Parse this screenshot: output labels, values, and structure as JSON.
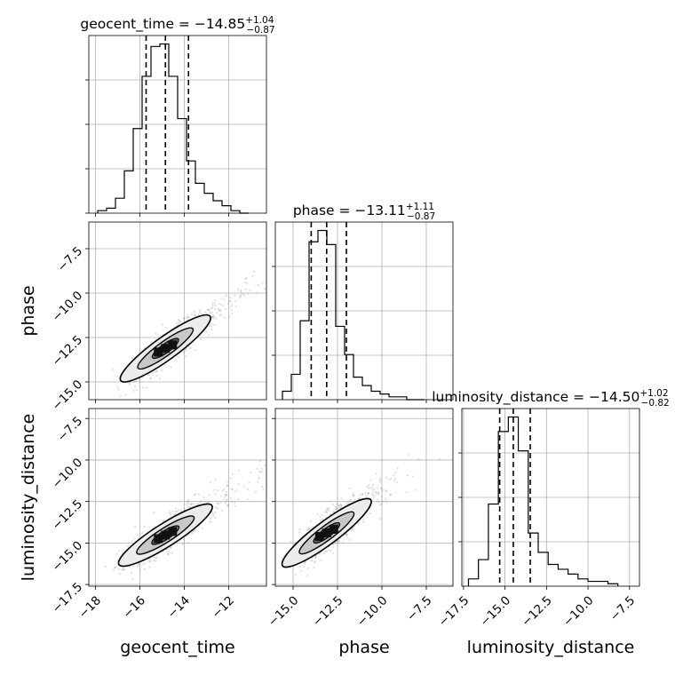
{
  "chart_data": {
    "type": "corner",
    "parameters": [
      "geocent_time",
      "phase",
      "luminosity_distance"
    ],
    "axis_labels": {
      "geocent_time": "geocent_time",
      "phase": "phase",
      "luminosity_distance": "luminosity_distance"
    },
    "ranges": {
      "geocent_time": [
        -18.3,
        -10.3
      ],
      "phase": [
        -16.0,
        -6.0
      ],
      "luminosity_distance": [
        -17.6,
        -6.9
      ]
    },
    "ticks": {
      "geocent_time": {
        "values": [
          -18,
          -16,
          -14,
          -12
        ],
        "labels": [
          "−18",
          "−16",
          "−14",
          "−12"
        ]
      },
      "phase": {
        "values": [
          -15.0,
          -12.5,
          -10.0,
          -7.5
        ],
        "labels": [
          "−15.0",
          "−12.5",
          "−10.0",
          "−7.5"
        ]
      },
      "luminosity_distance": {
        "values": [
          -17.5,
          -15.0,
          -12.5,
          -10.0,
          -7.5
        ],
        "labels": [
          "−17.5",
          "−15.0",
          "−12.5",
          "−10.0",
          "−7.5"
        ]
      }
    },
    "titles": [
      {
        "param": "geocent_time",
        "text": "geocent_time = −14.85",
        "plus": "+1.04",
        "minus": "−0.87"
      },
      {
        "param": "phase",
        "text": "phase = −13.11",
        "plus": "+1.11",
        "minus": "−0.87"
      },
      {
        "param": "luminosity_distance",
        "text": "luminosity_distance = −14.50",
        "plus": "+1.02",
        "minus": "−0.82"
      }
    ],
    "quantiles": {
      "geocent_time": [
        -15.72,
        -14.85,
        -13.81
      ],
      "phase": [
        -13.98,
        -13.11,
        -12.0
      ],
      "luminosity_distance": [
        -15.32,
        -14.5,
        -13.48
      ]
    },
    "histograms": {
      "geocent_time": {
        "edges": [
          -17.9,
          -17.5,
          -17.1,
          -16.7,
          -16.3,
          -15.9,
          -15.5,
          -15.1,
          -14.7,
          -14.3,
          -13.9,
          -13.5,
          -13.1,
          -12.7,
          -12.3,
          -11.9,
          -11.5,
          -11.1
        ],
        "counts": [
          1,
          2,
          6,
          17,
          34,
          55,
          67,
          68,
          55,
          38,
          21,
          12,
          8,
          5,
          3,
          1,
          0
        ]
      },
      "phase": {
        "edges": [
          -15.6,
          -15.1,
          -14.6,
          -14.1,
          -13.6,
          -13.1,
          -12.6,
          -12.1,
          -11.6,
          -11.1,
          -10.6,
          -10.1,
          -9.6,
          -9.1,
          -8.6,
          -8.1,
          -7.6
        ],
        "counts": [
          3,
          9,
          28,
          56,
          60,
          55,
          26,
          16,
          8,
          5,
          3,
          2,
          1,
          1,
          0,
          0
        ]
      },
      "luminosity_distance": {
        "edges": [
          -17.2,
          -16.6,
          -16.0,
          -15.4,
          -14.8,
          -14.2,
          -13.6,
          -13.0,
          -12.4,
          -11.8,
          -11.2,
          -10.6,
          -10.0,
          -9.4,
          -8.8,
          -8.2
        ],
        "counts": [
          3,
          11,
          34,
          64,
          70,
          56,
          22,
          14,
          9,
          7,
          5,
          3,
          2,
          2,
          1
        ]
      }
    },
    "pairs": [
      {
        "x": "geocent_time",
        "y": "phase",
        "slope": 0.9,
        "intercept": 0.25,
        "spread": 0.45
      },
      {
        "x": "geocent_time",
        "y": "luminosity_distance",
        "slope": 0.85,
        "intercept": -1.9,
        "spread": 0.5
      },
      {
        "x": "phase",
        "y": "luminosity_distance",
        "slope": 0.8,
        "intercept": -3.9,
        "spread": 0.55
      }
    ],
    "colors": {
      "line": "#000000",
      "points": "#7f7f7f",
      "grid": "#b0b0b0"
    },
    "grid": true
  }
}
